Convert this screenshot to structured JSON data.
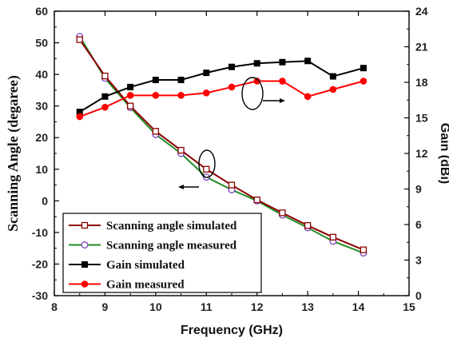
{
  "chart_data": {
    "type": "line",
    "xlabel": "Frequency (GHz)",
    "ylabel_left": "Scanning Angle (degaree)",
    "ylabel_right": "Gain (dBi)",
    "xlim": [
      8,
      15
    ],
    "ylim_left": [
      -30,
      60
    ],
    "ylim_right": [
      0,
      24
    ],
    "x_ticks": [
      8,
      9,
      10,
      11,
      12,
      13,
      14,
      15
    ],
    "y_ticks_left": [
      -30,
      -20,
      -10,
      0,
      10,
      20,
      30,
      40,
      50,
      60
    ],
    "y_ticks_right": [
      0,
      3,
      6,
      9,
      12,
      15,
      18,
      21,
      24
    ],
    "legend_position": "bottom-left",
    "series": [
      {
        "name": "Scanning angle simulated",
        "axis": "left",
        "color": "#8b0000",
        "marker": "open-square",
        "x": [
          8.5,
          9.0,
          9.5,
          10.0,
          10.5,
          11.0,
          11.5,
          12.0,
          12.5,
          13.0,
          13.5,
          14.1
        ],
        "values": [
          51.0,
          39.5,
          30.0,
          22.0,
          16.0,
          10.0,
          5.0,
          0.3,
          -3.8,
          -7.8,
          -11.5,
          -15.5
        ]
      },
      {
        "name": "Scanning angle measured",
        "axis": "left",
        "color": "#228b22",
        "marker": "open-circle",
        "x": [
          8.5,
          9.0,
          9.5,
          10.0,
          10.5,
          11.0,
          11.5,
          12.0,
          12.5,
          13.0,
          13.5,
          14.1
        ],
        "values": [
          52.0,
          38.8,
          29.5,
          21.0,
          15.0,
          7.5,
          3.5,
          0.0,
          -4.5,
          -8.5,
          -12.8,
          -16.5
        ]
      },
      {
        "name": "Gain simulated",
        "axis": "right",
        "color": "#000000",
        "marker": "filled-square",
        "x": [
          8.5,
          9.0,
          9.5,
          10.0,
          10.5,
          11.0,
          11.5,
          12.0,
          12.5,
          13.0,
          13.5,
          14.1
        ],
        "values": [
          15.5,
          16.8,
          17.6,
          18.2,
          18.2,
          18.8,
          19.3,
          19.6,
          19.7,
          19.8,
          18.5,
          19.2
        ]
      },
      {
        "name": "Gain measured",
        "axis": "right",
        "color": "#ff0000",
        "marker": "filled-circle",
        "x": [
          8.5,
          9.0,
          9.5,
          10.0,
          10.5,
          11.0,
          11.5,
          12.0,
          12.5,
          13.0,
          13.5,
          14.1
        ],
        "values": [
          15.1,
          15.9,
          16.9,
          16.9,
          16.9,
          17.1,
          17.6,
          18.1,
          18.1,
          16.8,
          17.4,
          18.1
        ]
      }
    ]
  }
}
